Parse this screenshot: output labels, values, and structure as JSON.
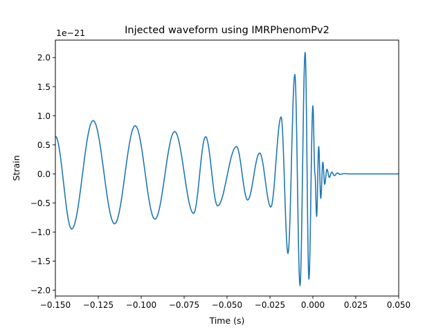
{
  "chart_data": {
    "type": "line",
    "title": "Injected waveform using IMRPhenomPv2",
    "xlabel": "Time (s)",
    "ylabel": "Strain",
    "offset_label": "1e−21",
    "xlim": [
      -0.15,
      0.05
    ],
    "ylim": [
      -2.1,
      2.3
    ],
    "xticks": [
      -0.15,
      -0.125,
      -0.1,
      -0.075,
      -0.05,
      -0.025,
      0.0,
      0.025,
      0.05
    ],
    "xtick_labels": [
      "−0.150",
      "−0.125",
      "−0.100",
      "−0.075",
      "−0.050",
      "−0.025",
      "0.000",
      "0.025",
      "0.050"
    ],
    "yticks": [
      -2.0,
      -1.5,
      -1.0,
      -0.5,
      0.0,
      0.5,
      1.0,
      1.5,
      2.0
    ],
    "ytick_labels": [
      "−2.0",
      "−1.5",
      "−1.0",
      "−0.5",
      "0.0",
      "0.5",
      "1.0",
      "1.5",
      "2.0"
    ],
    "grid": false,
    "line_color": "#1f77b4",
    "series": [
      {
        "x": [
          -0.15,
          -0.1405,
          -0.128,
          -0.1155,
          -0.1035,
          -0.092,
          -0.0805,
          -0.0695,
          -0.0625,
          -0.0555,
          -0.0445,
          -0.038,
          -0.031,
          -0.0245,
          -0.0185,
          -0.0145,
          -0.0105,
          -0.0075,
          -0.0045,
          -0.0023,
          0.0,
          0.0012,
          0.0022,
          0.0034,
          0.0046,
          0.0058,
          0.0069,
          0.0082,
          0.0096,
          0.011,
          0.0126,
          0.0142,
          0.016,
          0.018,
          0.021,
          0.025,
          0.05
        ],
        "y": [
          0.65,
          -0.95,
          0.92,
          -0.86,
          0.83,
          -0.78,
          0.73,
          -0.68,
          0.64,
          -0.55,
          0.47,
          -0.45,
          0.36,
          -0.57,
          0.98,
          -1.37,
          1.71,
          -1.92,
          2.09,
          -1.81,
          1.17,
          -0.0,
          -0.73,
          0.47,
          -0.42,
          0.2,
          -0.18,
          0.08,
          -0.06,
          0.03,
          -0.03,
          0.015,
          -0.01,
          0.005,
          0.0,
          0.0,
          0.0
        ]
      }
    ]
  }
}
